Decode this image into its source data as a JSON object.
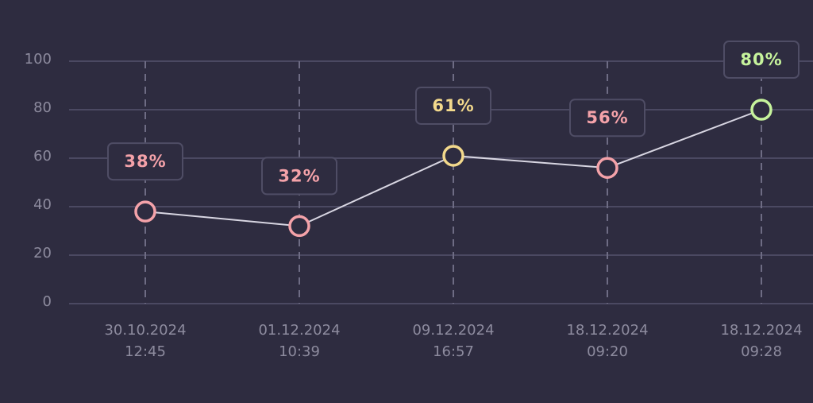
{
  "chart_data": {
    "type": "line",
    "categories": [
      [
        "30.10.2024",
        "12:45"
      ],
      [
        "01.12.2024",
        "10:39"
      ],
      [
        "09.12.2024",
        "16:57"
      ],
      [
        "18.12.2024",
        "09:20"
      ],
      [
        "18.12.2024",
        "09:28"
      ]
    ],
    "values": [
      38,
      32,
      61,
      56,
      80
    ],
    "value_labels": [
      "38%",
      "32%",
      "61%",
      "56%",
      "80%"
    ],
    "point_colors": [
      "#f4a2a9",
      "#f4a2a9",
      "#f3d98c",
      "#f4a2a9",
      "#c6f39c"
    ],
    "line_color": "#d8d6e2",
    "ylim": [
      0,
      100
    ],
    "yticks": [
      0,
      20,
      40,
      60,
      80,
      100
    ],
    "grid": true
  }
}
